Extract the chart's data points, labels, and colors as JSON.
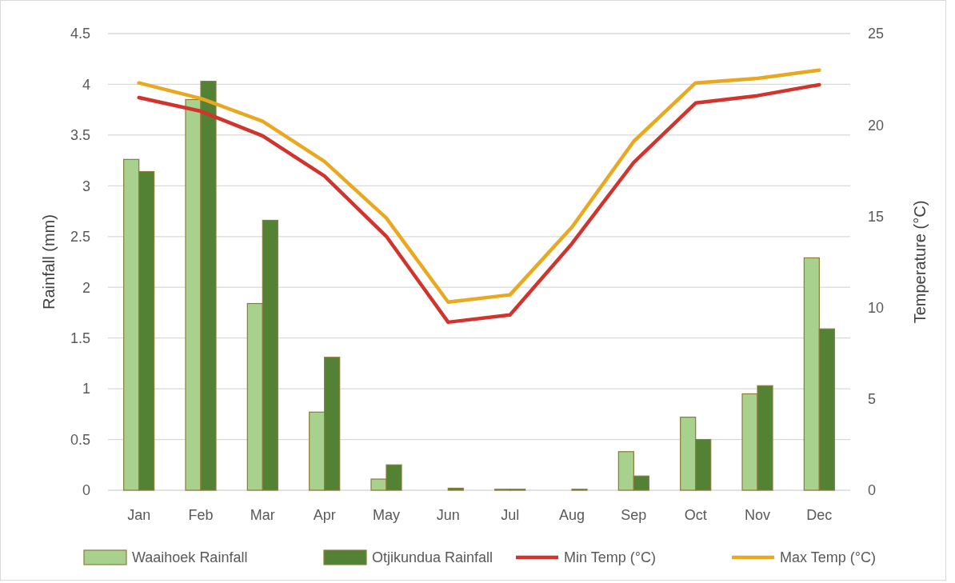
{
  "chart_data": {
    "type": "bar",
    "ylabel": "Rainfall (mm)",
    "y2label": "Temperature (°C)",
    "categories": [
      "Jan",
      "Feb",
      "Mar",
      "Apr",
      "May",
      "Jun",
      "Jul",
      "Aug",
      "Sep",
      "Oct",
      "Nov",
      "Dec"
    ],
    "series": [
      {
        "name": "Waaihoek Rainfall",
        "color": "#a9d18e",
        "values": [
          3.26,
          3.85,
          1.84,
          0.77,
          0.11,
          0,
          0.01,
          0,
          0.38,
          0.72,
          0.95,
          2.29
        ]
      },
      {
        "name": "Otjikundua Rainfall",
        "color": "#548235",
        "values": [
          3.14,
          4.03,
          2.66,
          1.31,
          0.25,
          0.02,
          0.01,
          0.01,
          0.14,
          0.5,
          1.03,
          1.59
        ]
      },
      {
        "name": "Min Temp (°C)",
        "type": "line",
        "axis": "y2",
        "color": "#d0342c",
        "values": [
          21.5,
          20.75,
          19.4,
          17.2,
          13.9,
          9.2,
          9.6,
          13.5,
          17.95,
          21.2,
          21.6,
          22.2
        ]
      },
      {
        "name": "Max Temp (°C)",
        "type": "line",
        "axis": "y2",
        "color": "#e8a820",
        "values": [
          22.3,
          21.45,
          20.2,
          18.0,
          14.9,
          10.3,
          10.7,
          14.4,
          19.1,
          22.3,
          22.55,
          23.0
        ]
      }
    ],
    "ylim": [
      0,
      4.5
    ],
    "yticks": [
      0,
      {
        "value": 0.5,
        "label": "0.5"
      },
      1,
      {
        "value": 1.5,
        "label": "1.5"
      },
      2,
      {
        "value": 2.5,
        "label": "2.5"
      },
      3,
      {
        "value": 3.5,
        "label": "3.5"
      },
      4,
      {
        "value": 4.5,
        "label": "4.5"
      }
    ],
    "y2lim": [
      0,
      25
    ],
    "y2ticks": [
      0,
      5,
      10,
      15,
      20,
      25
    ],
    "grid": "y",
    "legend": "bottom",
    "marker": "none",
    "line_style": "solid"
  }
}
